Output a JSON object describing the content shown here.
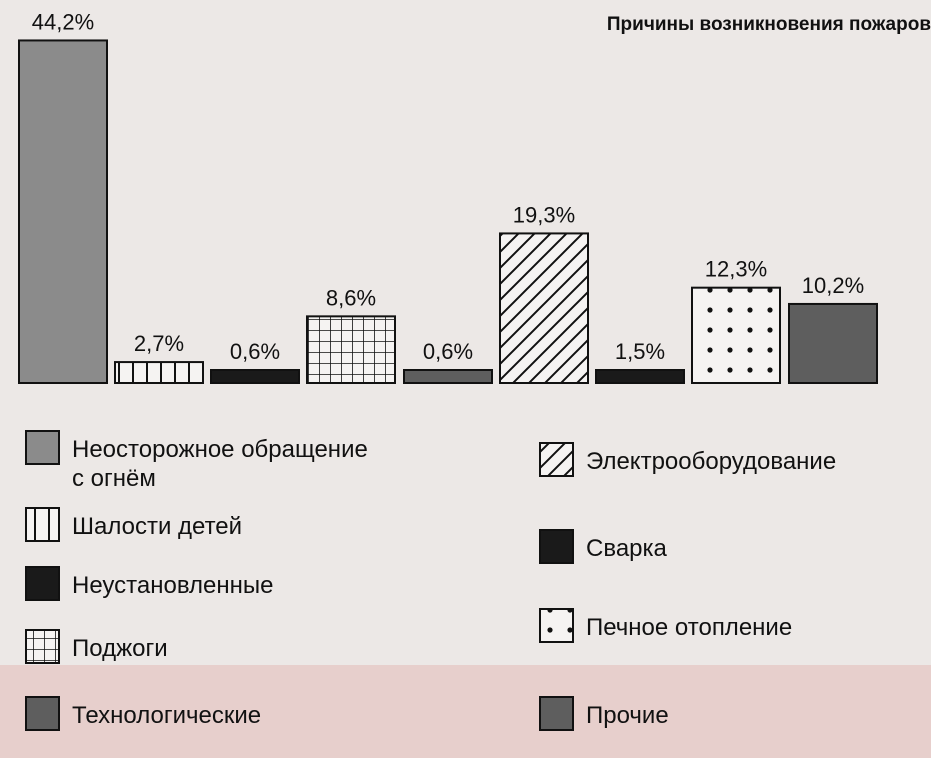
{
  "chart_data": {
    "type": "bar",
    "title": "Причины возникновения пожаров",
    "xlabel": "",
    "ylabel": "",
    "ylim": [
      0,
      44.2
    ],
    "grid": false,
    "legend_position": "bottom",
    "categories": [
      "Неосторожное обращение с огнём",
      "Шалости детей",
      "Неустановленные",
      "Поджоги",
      "Технологические",
      "Электрооборудование",
      "Сварка",
      "Печное отопление",
      "Прочие"
    ],
    "values": [
      44.2,
      2.7,
      0.6,
      8.6,
      0.6,
      19.3,
      1.5,
      12.3,
      10.2
    ],
    "value_labels": [
      "44,2%",
      "2,7%",
      "0,6%",
      "8,6%",
      "0,6%",
      "19,3%",
      "1,5%",
      "12,3%",
      "10,2%"
    ],
    "legend": [
      {
        "label": "Неосторожное обращение\nс огнём",
        "pattern": "solid-gray"
      },
      {
        "label": "Шалости детей",
        "pattern": "vertical-stripes"
      },
      {
        "label": "Неустановленные",
        "pattern": "solid-black"
      },
      {
        "label": "Поджоги",
        "pattern": "grid"
      },
      {
        "label": "Технологические",
        "pattern": "solid-dark-gray"
      },
      {
        "label": "Электрооборудование",
        "pattern": "diagonal-hatch"
      },
      {
        "label": "Сварка",
        "pattern": "solid-black"
      },
      {
        "label": "Печное отопление",
        "pattern": "dots"
      },
      {
        "label": "Прочие",
        "pattern": "solid-dark-gray"
      }
    ],
    "patterns": [
      "solid-gray",
      "vertical-stripes",
      "solid-black",
      "grid",
      "solid-dark-gray",
      "diagonal-hatch",
      "solid-black",
      "dots",
      "solid-dark-gray"
    ]
  },
  "colors": {
    "solid_gray": "#8b8b8b",
    "solid_dark_gray": "#5e5e5e",
    "solid_black": "#1a1a1a",
    "pattern_bg": "#f5f3f2",
    "ink": "#111111",
    "page": "#ece8e6",
    "band": "#e7cfcc"
  }
}
